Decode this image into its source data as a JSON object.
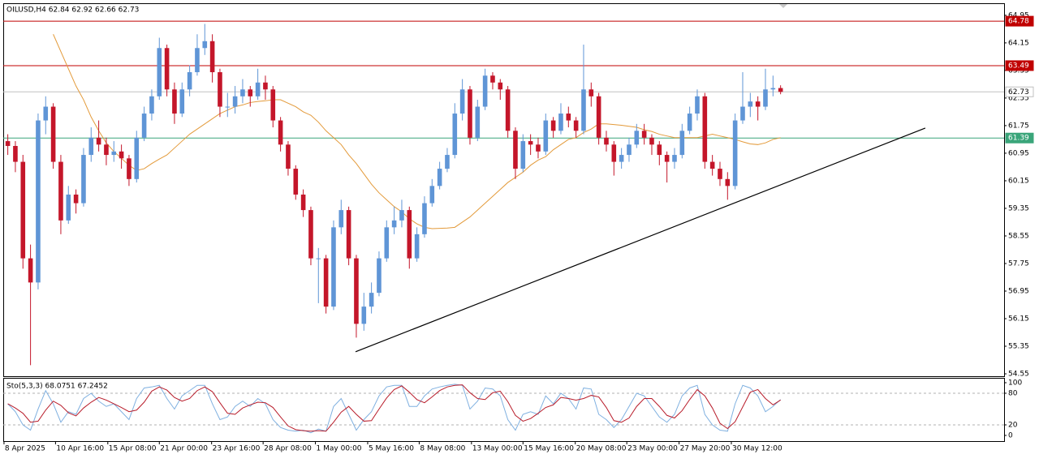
{
  "chart_data": [
    {
      "type": "candlestick",
      "title": "OILUSD,H4  62.84 62.92 62.66 62.73",
      "xlim": [
        -0.6,
        131.5
      ],
      "ylim": [
        54.48,
        65.3
      ],
      "yticks": [
        64.95,
        64.15,
        63.35,
        62.55,
        61.75,
        60.95,
        60.15,
        59.35,
        58.55,
        57.75,
        56.95,
        56.15,
        55.35,
        54.55
      ],
      "up_color": "#5f95d6",
      "down_color": "#c4162a",
      "candles": [
        [
          61.3,
          61.5,
          60.9,
          61.16
        ],
        [
          61.16,
          61.3,
          60.4,
          60.7
        ],
        [
          60.7,
          60.9,
          57.6,
          57.9
        ],
        [
          57.9,
          58.3,
          54.8,
          57.2
        ],
        [
          57.2,
          62.1,
          57.0,
          61.9
        ],
        [
          61.9,
          62.6,
          61.5,
          62.3
        ],
        [
          62.3,
          62.4,
          60.5,
          60.7
        ],
        [
          60.7,
          60.9,
          58.6,
          59.0
        ],
        [
          59.0,
          60.0,
          58.9,
          59.75
        ],
        [
          59.75,
          59.9,
          59.2,
          59.5
        ],
        [
          59.5,
          61.1,
          59.4,
          60.9
        ],
        [
          60.9,
          61.7,
          60.7,
          61.4
        ],
        [
          61.4,
          61.9,
          61.0,
          61.2
        ],
        [
          61.2,
          61.4,
          60.6,
          60.9
        ],
        [
          60.9,
          61.3,
          60.7,
          61.0
        ],
        [
          61.0,
          61.2,
          60.5,
          60.8
        ],
        [
          60.8,
          60.9,
          60.0,
          60.2
        ],
        [
          60.2,
          61.6,
          60.1,
          61.4
        ],
        [
          61.4,
          62.3,
          61.3,
          62.1
        ],
        [
          62.1,
          62.8,
          61.9,
          62.6
        ],
        [
          62.6,
          64.3,
          62.5,
          64.0
        ],
        [
          64.0,
          64.1,
          62.6,
          62.8
        ],
        [
          62.8,
          63.0,
          61.8,
          62.1
        ],
        [
          62.1,
          63.0,
          62.0,
          62.8
        ],
        [
          62.8,
          63.5,
          62.6,
          63.3
        ],
        [
          63.3,
          64.4,
          63.2,
          64.0
        ],
        [
          64.0,
          64.7,
          63.8,
          64.2
        ],
        [
          64.2,
          64.4,
          63.0,
          63.3
        ],
        [
          63.3,
          63.4,
          62.0,
          62.3
        ],
        [
          62.3,
          62.7,
          62.0,
          62.3
        ],
        [
          62.3,
          62.9,
          62.1,
          62.6
        ],
        [
          62.6,
          63.1,
          62.4,
          62.8
        ],
        [
          62.8,
          62.9,
          62.3,
          62.6
        ],
        [
          62.6,
          63.4,
          62.5,
          63.0
        ],
        [
          63.0,
          63.2,
          62.5,
          62.8
        ],
        [
          62.8,
          62.9,
          61.7,
          61.9
        ],
        [
          61.9,
          62.0,
          61.0,
          61.2
        ],
        [
          61.2,
          61.3,
          60.3,
          60.5
        ],
        [
          60.5,
          60.6,
          59.6,
          59.75
        ],
        [
          59.75,
          59.9,
          59.1,
          59.3
        ],
        [
          59.3,
          59.4,
          57.7,
          57.9
        ],
        [
          57.9,
          58.2,
          56.6,
          57.9
        ],
        [
          57.9,
          58.0,
          56.3,
          56.5
        ],
        [
          56.5,
          59.0,
          56.4,
          58.8
        ],
        [
          58.8,
          59.6,
          58.6,
          59.3
        ],
        [
          59.3,
          59.4,
          57.7,
          57.9
        ],
        [
          57.9,
          58.0,
          55.6,
          56.0
        ],
        [
          56.0,
          56.9,
          55.8,
          56.5
        ],
        [
          56.5,
          57.2,
          56.3,
          56.9
        ],
        [
          56.9,
          58.1,
          56.8,
          57.9
        ],
        [
          57.9,
          59.0,
          57.8,
          58.8
        ],
        [
          58.8,
          59.4,
          58.6,
          59.0
        ],
        [
          59.0,
          59.6,
          58.8,
          59.3
        ],
        [
          59.3,
          59.4,
          57.6,
          57.9
        ],
        [
          57.9,
          58.8,
          57.8,
          58.6
        ],
        [
          58.6,
          59.7,
          58.5,
          59.5
        ],
        [
          59.5,
          60.2,
          59.4,
          60.0
        ],
        [
          60.0,
          60.7,
          59.9,
          60.5
        ],
        [
          60.5,
          61.1,
          60.4,
          60.9
        ],
        [
          60.9,
          62.4,
          60.8,
          62.1
        ],
        [
          62.1,
          63.1,
          61.9,
          62.8
        ],
        [
          62.8,
          62.9,
          61.2,
          61.4
        ],
        [
          61.4,
          62.5,
          61.3,
          62.3
        ],
        [
          62.3,
          63.4,
          62.2,
          63.2
        ],
        [
          63.2,
          63.3,
          62.8,
          63.0
        ],
        [
          63.0,
          63.1,
          62.5,
          62.8
        ],
        [
          62.8,
          62.9,
          61.4,
          61.6
        ],
        [
          61.6,
          61.7,
          60.2,
          60.5
        ],
        [
          60.5,
          61.5,
          60.4,
          61.3
        ],
        [
          61.3,
          61.5,
          60.9,
          61.2
        ],
        [
          61.2,
          61.4,
          60.8,
          61.0
        ],
        [
          61.0,
          62.1,
          60.9,
          61.9
        ],
        [
          61.9,
          62.0,
          61.4,
          61.6
        ],
        [
          61.6,
          62.4,
          61.5,
          62.1
        ],
        [
          62.1,
          62.3,
          61.7,
          61.9
        ],
        [
          61.9,
          62.0,
          61.4,
          61.6
        ],
        [
          61.6,
          64.1,
          61.5,
          62.8
        ],
        [
          62.8,
          63.0,
          62.3,
          62.6
        ],
        [
          62.6,
          62.7,
          61.2,
          61.4
        ],
        [
          61.4,
          61.6,
          61.0,
          61.2
        ],
        [
          61.2,
          61.3,
          60.3,
          60.7
        ],
        [
          60.7,
          61.1,
          60.5,
          60.9
        ],
        [
          60.9,
          61.4,
          60.7,
          61.2
        ],
        [
          61.2,
          61.8,
          61.1,
          61.6
        ],
        [
          61.6,
          61.8,
          61.2,
          61.4
        ],
        [
          61.4,
          61.5,
          60.9,
          61.2
        ],
        [
          61.2,
          61.3,
          60.6,
          60.9
        ],
        [
          60.9,
          61.0,
          60.1,
          60.7
        ],
        [
          60.7,
          61.1,
          60.5,
          60.9
        ],
        [
          60.9,
          61.8,
          60.8,
          61.6
        ],
        [
          61.6,
          62.3,
          61.5,
          62.1
        ],
        [
          62.1,
          62.8,
          61.9,
          62.6
        ],
        [
          62.6,
          62.7,
          60.5,
          60.7
        ],
        [
          60.7,
          60.9,
          60.3,
          60.5
        ],
        [
          60.5,
          60.7,
          60.0,
          60.2
        ],
        [
          60.2,
          60.4,
          59.6,
          60.0
        ],
        [
          60.0,
          62.1,
          59.9,
          61.9
        ],
        [
          61.9,
          63.3,
          61.8,
          62.3
        ],
        [
          62.3,
          62.7,
          62.0,
          62.45
        ],
        [
          62.45,
          62.6,
          61.9,
          62.3
        ],
        [
          62.3,
          63.4,
          62.2,
          62.8
        ],
        [
          62.8,
          63.2,
          62.6,
          62.84
        ],
        [
          62.84,
          62.92,
          62.66,
          62.73
        ]
      ],
      "ma": {
        "color": "#e39a3a",
        "values": [
          null,
          null,
          null,
          null,
          null,
          null,
          64.4,
          63.9,
          63.4,
          62.9,
          62.5,
          62.0,
          61.6,
          61.25,
          61.0,
          60.8,
          60.6,
          60.45,
          60.5,
          60.65,
          60.78,
          60.9,
          61.1,
          61.3,
          61.5,
          61.65,
          61.8,
          61.95,
          62.1,
          62.2,
          62.3,
          62.35,
          62.42,
          62.45,
          62.47,
          62.5,
          62.5,
          62.4,
          62.3,
          62.15,
          62.05,
          61.85,
          61.6,
          61.4,
          61.2,
          60.9,
          60.65,
          60.35,
          60.05,
          59.8,
          59.6,
          59.4,
          59.25,
          59.05,
          58.9,
          58.8,
          58.76,
          58.77,
          58.78,
          58.8,
          58.95,
          59.1,
          59.3,
          59.5,
          59.7,
          59.9,
          60.1,
          60.25,
          60.4,
          60.6,
          60.75,
          60.85,
          61.05,
          61.2,
          61.35,
          61.4,
          61.55,
          61.65,
          61.8,
          61.8,
          61.78,
          61.76,
          61.73,
          61.7,
          61.63,
          61.58,
          61.5,
          61.45,
          61.4,
          61.4,
          61.4,
          61.4,
          61.45,
          61.5,
          61.45,
          61.4,
          61.35,
          61.28,
          61.22,
          61.2,
          61.25,
          61.35,
          61.4
        ]
      },
      "levels": [
        {
          "value": 64.78,
          "color": "#c00000",
          "box": "#c00000",
          "ink": "#ffffff"
        },
        {
          "value": 63.49,
          "color": "#c00000",
          "box": "#c00000",
          "ink": "#ffffff"
        },
        {
          "value": 62.73,
          "color": "#c0c0c0",
          "box": "#ffffff",
          "ink": "#000000"
        },
        {
          "value": 61.39,
          "color": "#3aa57a",
          "box": "#3aa57a",
          "ink": "#ffffff"
        }
      ],
      "trendline": {
        "color": "#000000",
        "x": [
          45.9,
          121.1
        ],
        "y": [
          55.19,
          61.68
        ]
      }
    },
    {
      "type": "line",
      "title": "Sto(5,3,3) 68.0751 67.2452",
      "xlim": [
        -0.6,
        131.5
      ],
      "ylim": [
        -10.8,
        109.2
      ],
      "yticks": [
        100,
        80,
        20,
        0
      ],
      "levels": [
        80,
        20
      ],
      "series": [
        {
          "color": "#7fb0e0",
          "values": [
            60,
            45,
            20,
            10,
            50,
            85,
            60,
            25,
            45,
            40,
            70,
            80,
            65,
            55,
            60,
            45,
            30,
            70,
            90,
            92,
            95,
            70,
            50,
            75,
            85,
            95,
            95,
            60,
            30,
            35,
            55,
            65,
            55,
            70,
            60,
            30,
            15,
            10,
            8,
            10,
            5,
            12,
            8,
            55,
            70,
            40,
            10,
            30,
            45,
            75,
            92,
            95,
            95,
            55,
            55,
            75,
            88,
            92,
            95,
            97,
            95,
            50,
            65,
            90,
            88,
            75,
            30,
            10,
            40,
            45,
            40,
            75,
            60,
            80,
            70,
            50,
            90,
            88,
            40,
            30,
            15,
            30,
            55,
            80,
            75,
            55,
            35,
            25,
            40,
            75,
            90,
            95,
            40,
            20,
            10,
            8,
            60,
            95,
            90,
            75,
            45,
            55,
            68.0751
          ]
        },
        {
          "color": "#b81c2a",
          "values": [
            60,
            52,
            42,
            25,
            27,
            48,
            65,
            57,
            43,
            37,
            52,
            63,
            72,
            67,
            60,
            53,
            45,
            48,
            63,
            84,
            92,
            86,
            72,
            65,
            70,
            85,
            92,
            83,
            62,
            42,
            40,
            52,
            58,
            63,
            62,
            53,
            35,
            18,
            11,
            9,
            8,
            9,
            8,
            25,
            44,
            55,
            40,
            27,
            28,
            50,
            71,
            87,
            94,
            82,
            68,
            62,
            73,
            85,
            92,
            95,
            96,
            81,
            70,
            68,
            81,
            84,
            64,
            38,
            27,
            32,
            42,
            53,
            58,
            72,
            70,
            67,
            70,
            76,
            73,
            53,
            28,
            25,
            33,
            55,
            70,
            70,
            55,
            38,
            33,
            47,
            68,
            87,
            75,
            52,
            23,
            13,
            26,
            54,
            82,
            87,
            70,
            58,
            67.2452
          ]
        }
      ],
      "xticks": [
        {
          "value": -0.5,
          "label": "8 Apr 2025"
        },
        {
          "value": 6.3,
          "label": "10 Apr 16:00"
        },
        {
          "value": 13.2,
          "label": "15 Apr 08:00"
        },
        {
          "value": 20.0,
          "label": "21 Apr 00:00"
        },
        {
          "value": 26.9,
          "label": "23 Apr 16:00"
        },
        {
          "value": 33.7,
          "label": "28 Apr 08:00"
        },
        {
          "value": 40.6,
          "label": "1 May 00:00"
        },
        {
          "value": 47.5,
          "label": "5 May 16:00"
        },
        {
          "value": 54.3,
          "label": "8 May 08:00"
        },
        {
          "value": 61.2,
          "label": "13 May 00:00"
        },
        {
          "value": 68.0,
          "label": "15 May 16:00"
        },
        {
          "value": 74.9,
          "label": "20 May 08:00"
        },
        {
          "value": 81.7,
          "label": "23 May 00:00"
        },
        {
          "value": 88.6,
          "label": "27 May 20:00"
        },
        {
          "value": 95.5,
          "label": "30 May 12:00"
        }
      ]
    }
  ]
}
